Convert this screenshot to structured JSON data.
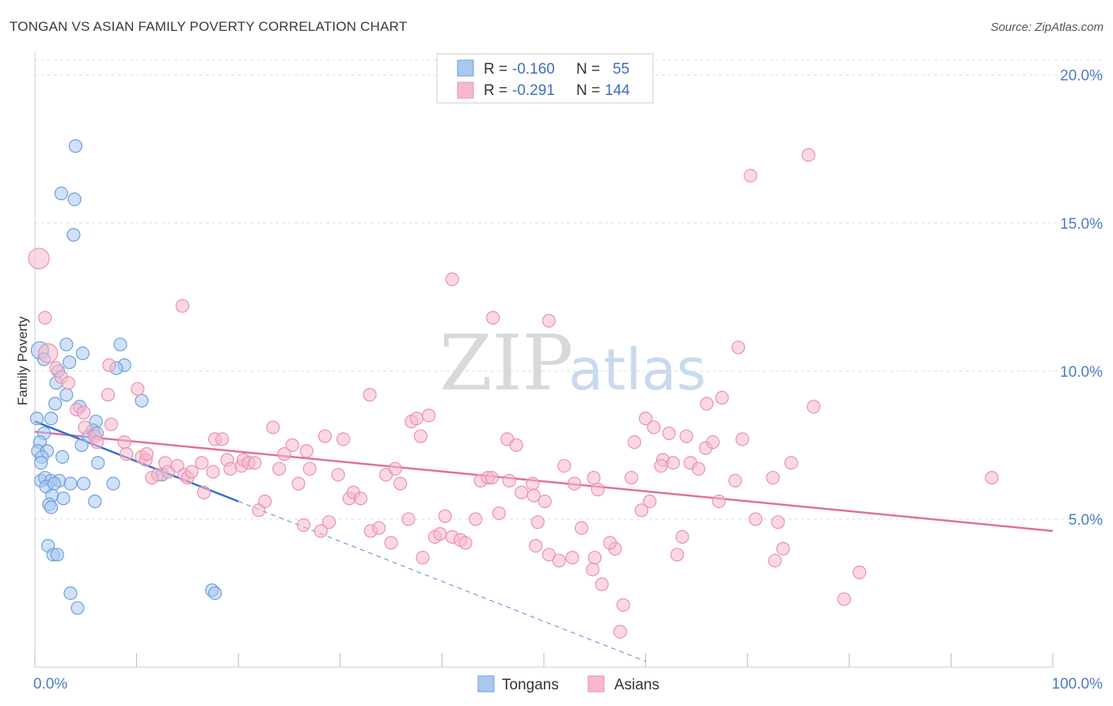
{
  "title": "TONGAN VS ASIAN FAMILY POVERTY CORRELATION CHART",
  "source": "Source: ZipAtlas.com",
  "watermark": {
    "zip": "ZIP",
    "atlas": "atlas"
  },
  "colors": {
    "tongans_fill": "#a9c8f0",
    "tongans_stroke": "#6d9ee0",
    "tongans_line": "#2f6fd0",
    "asians_fill": "#f7b8cc",
    "asians_stroke": "#ec90ae",
    "asians_line": "#e0709a",
    "tick_label": "#4a7cc8",
    "grid": "#dddddd"
  },
  "legend": {
    "row1": {
      "r_label": "R = ",
      "r_value": "-0.160",
      "n_label": "N = ",
      "n_value": "55"
    },
    "row2": {
      "r_label": "R = ",
      "r_value": "-0.291",
      "n_label": "N = ",
      "n_value": "144"
    }
  },
  "bottom_legend": [
    "Tongans",
    "Asians"
  ],
  "chart_data": {
    "type": "scatter",
    "ylabel": "Family Poverty",
    "xlim": [
      0,
      100
    ],
    "ylim": [
      0,
      20.5
    ],
    "y_ticks": [
      {
        "v": 5,
        "label": "5.0%"
      },
      {
        "v": 10,
        "label": "10.0%"
      },
      {
        "v": 15,
        "label": "15.0%"
      },
      {
        "v": 20,
        "label": "20.0%"
      }
    ],
    "x_tick_labels": [
      {
        "v": 0,
        "label": "0.0%"
      },
      {
        "v": 100,
        "label": "100.0%"
      }
    ],
    "x_minor_ticks": [
      0,
      10,
      20,
      30,
      40,
      50,
      60,
      70,
      80,
      90,
      100
    ],
    "grid": true,
    "series": [
      {
        "name": "Tongans",
        "r": -0.16,
        "n": 55,
        "trend": {
          "x0": 0,
          "y0": 8.3,
          "x1": 20,
          "y1": 5.6
        },
        "trend_extended": {
          "x0": 20,
          "y0": 5.6,
          "x1": 60,
          "y1": 0.2
        },
        "points": [
          [
            4.0,
            17.6
          ],
          [
            2.6,
            16.0
          ],
          [
            3.9,
            15.8
          ],
          [
            3.8,
            14.6
          ],
          [
            3.1,
            10.9
          ],
          [
            8.4,
            10.9
          ],
          [
            0.5,
            10.7
          ],
          [
            4.7,
            10.6
          ],
          [
            0.9,
            10.4
          ],
          [
            3.4,
            10.3
          ],
          [
            8.8,
            10.2
          ],
          [
            2.3,
            10.0
          ],
          [
            2.1,
            9.6
          ],
          [
            3.1,
            9.2
          ],
          [
            10.5,
            9.0
          ],
          [
            2.0,
            8.9
          ],
          [
            0.2,
            8.4
          ],
          [
            1.6,
            8.4
          ],
          [
            6.0,
            8.3
          ],
          [
            5.7,
            8.0
          ],
          [
            4.4,
            8.8
          ],
          [
            6.1,
            7.9
          ],
          [
            5.3,
            7.8
          ],
          [
            0.9,
            7.9
          ],
          [
            0.5,
            7.6
          ],
          [
            4.6,
            7.5
          ],
          [
            0.3,
            7.3
          ],
          [
            1.2,
            7.3
          ],
          [
            0.7,
            7.1
          ],
          [
            2.7,
            7.1
          ],
          [
            6.2,
            6.9
          ],
          [
            0.6,
            6.3
          ],
          [
            1.0,
            6.4
          ],
          [
            1.6,
            6.3
          ],
          [
            2.4,
            6.3
          ],
          [
            1.1,
            6.1
          ],
          [
            1.9,
            6.2
          ],
          [
            4.8,
            6.2
          ],
          [
            7.7,
            6.2
          ],
          [
            1.7,
            5.8
          ],
          [
            2.8,
            5.7
          ],
          [
            1.4,
            5.5
          ],
          [
            1.6,
            5.4
          ],
          [
            5.9,
            5.6
          ],
          [
            12.5,
            6.5
          ],
          [
            1.3,
            4.1
          ],
          [
            1.8,
            3.8
          ],
          [
            2.2,
            3.8
          ],
          [
            3.5,
            2.5
          ],
          [
            17.4,
            2.6
          ],
          [
            17.7,
            2.5
          ],
          [
            4.2,
            2.0
          ],
          [
            0.6,
            6.9
          ],
          [
            3.5,
            6.2
          ],
          [
            8.0,
            10.1
          ]
        ]
      },
      {
        "name": "Asians",
        "r": -0.291,
        "n": 144,
        "trend": {
          "x0": 0,
          "y0": 7.95,
          "x1": 100,
          "y1": 4.6
        },
        "points": [
          [
            0.4,
            13.8
          ],
          [
            1.0,
            11.8
          ],
          [
            14.5,
            12.2
          ],
          [
            1.3,
            10.6
          ],
          [
            2.1,
            10.1
          ],
          [
            2.6,
            9.8
          ],
          [
            3.3,
            9.6
          ],
          [
            10.1,
            9.4
          ],
          [
            4.1,
            8.7
          ],
          [
            4.8,
            8.6
          ],
          [
            4.9,
            8.1
          ],
          [
            7.2,
            9.2
          ],
          [
            7.3,
            10.2
          ],
          [
            5.9,
            7.8
          ],
          [
            6.1,
            7.6
          ],
          [
            7.5,
            8.2
          ],
          [
            8.8,
            7.6
          ],
          [
            9.0,
            7.2
          ],
          [
            10.5,
            7.1
          ],
          [
            10.9,
            7.0
          ],
          [
            11.0,
            7.2
          ],
          [
            11.5,
            6.4
          ],
          [
            12.1,
            6.5
          ],
          [
            12.8,
            6.9
          ],
          [
            13.1,
            6.6
          ],
          [
            14.0,
            6.8
          ],
          [
            14.7,
            6.5
          ],
          [
            15.0,
            6.4
          ],
          [
            15.4,
            6.6
          ],
          [
            16.4,
            6.9
          ],
          [
            16.6,
            5.9
          ],
          [
            17.5,
            6.6
          ],
          [
            17.7,
            7.7
          ],
          [
            18.4,
            7.7
          ],
          [
            18.9,
            7.0
          ],
          [
            19.2,
            6.7
          ],
          [
            20.3,
            6.8
          ],
          [
            20.5,
            7.0
          ],
          [
            21.0,
            6.9
          ],
          [
            21.6,
            6.9
          ],
          [
            22.0,
            5.3
          ],
          [
            22.6,
            5.6
          ],
          [
            23.4,
            8.1
          ],
          [
            24.0,
            6.7
          ],
          [
            24.5,
            7.2
          ],
          [
            25.3,
            7.5
          ],
          [
            25.9,
            6.2
          ],
          [
            26.4,
            4.8
          ],
          [
            26.7,
            7.3
          ],
          [
            27.0,
            6.7
          ],
          [
            28.1,
            4.6
          ],
          [
            28.5,
            7.8
          ],
          [
            28.9,
            4.9
          ],
          [
            29.8,
            6.5
          ],
          [
            30.3,
            7.7
          ],
          [
            30.9,
            5.7
          ],
          [
            31.3,
            5.9
          ],
          [
            32.0,
            5.7
          ],
          [
            32.9,
            9.2
          ],
          [
            33.0,
            4.6
          ],
          [
            33.8,
            4.7
          ],
          [
            34.5,
            6.5
          ],
          [
            35.0,
            4.2
          ],
          [
            35.4,
            6.7
          ],
          [
            35.9,
            6.2
          ],
          [
            36.7,
            5.0
          ],
          [
            37.0,
            8.3
          ],
          [
            37.5,
            8.4
          ],
          [
            38.1,
            3.7
          ],
          [
            38.7,
            8.5
          ],
          [
            37.9,
            7.8
          ],
          [
            39.3,
            4.4
          ],
          [
            39.8,
            4.5
          ],
          [
            40.3,
            5.1
          ],
          [
            41.0,
            4.4
          ],
          [
            41.8,
            4.3
          ],
          [
            42.3,
            4.2
          ],
          [
            43.3,
            5.0
          ],
          [
            41.0,
            13.1
          ],
          [
            43.8,
            6.3
          ],
          [
            44.5,
            6.4
          ],
          [
            44.9,
            6.4
          ],
          [
            45.6,
            5.2
          ],
          [
            46.6,
            6.3
          ],
          [
            46.4,
            7.7
          ],
          [
            47.3,
            7.5
          ],
          [
            47.8,
            5.9
          ],
          [
            45.0,
            11.8
          ],
          [
            50.5,
            11.7
          ],
          [
            48.9,
            6.2
          ],
          [
            49.2,
            4.1
          ],
          [
            50.1,
            5.6
          ],
          [
            50.5,
            3.8
          ],
          [
            51.5,
            3.6
          ],
          [
            49.0,
            5.8
          ],
          [
            49.4,
            4.9
          ],
          [
            52.0,
            6.8
          ],
          [
            52.8,
            3.7
          ],
          [
            53.0,
            6.2
          ],
          [
            53.7,
            4.7
          ],
          [
            54.8,
            3.3
          ],
          [
            54.9,
            6.4
          ],
          [
            55.3,
            6.0
          ],
          [
            55.7,
            2.8
          ],
          [
            57.0,
            4.0
          ],
          [
            57.8,
            2.1
          ],
          [
            57.5,
            1.2
          ],
          [
            58.6,
            6.4
          ],
          [
            59.6,
            5.3
          ],
          [
            60.0,
            8.4
          ],
          [
            60.4,
            5.6
          ],
          [
            61.7,
            7.0
          ],
          [
            62.3,
            7.9
          ],
          [
            62.7,
            6.9
          ],
          [
            63.6,
            4.4
          ],
          [
            63.1,
            3.8
          ],
          [
            64.4,
            6.9
          ],
          [
            65.2,
            6.7
          ],
          [
            65.9,
            7.4
          ],
          [
            66.6,
            7.6
          ],
          [
            67.2,
            5.6
          ],
          [
            67.5,
            9.1
          ],
          [
            68.8,
            6.3
          ],
          [
            69.1,
            10.8
          ],
          [
            70.8,
            5.0
          ],
          [
            72.5,
            6.4
          ],
          [
            72.7,
            3.6
          ],
          [
            73.5,
            4.0
          ],
          [
            73.0,
            4.9
          ],
          [
            74.3,
            6.9
          ],
          [
            70.3,
            16.6
          ],
          [
            76.0,
            17.3
          ],
          [
            76.5,
            8.8
          ],
          [
            79.5,
            2.3
          ],
          [
            81.0,
            3.2
          ],
          [
            94.0,
            6.4
          ],
          [
            56.5,
            4.2
          ],
          [
            69.5,
            7.7
          ],
          [
            55.0,
            3.7
          ],
          [
            60.8,
            8.1
          ],
          [
            61.5,
            6.8
          ],
          [
            64.0,
            7.8
          ],
          [
            66.0,
            8.9
          ],
          [
            58.9,
            7.6
          ]
        ]
      }
    ]
  }
}
